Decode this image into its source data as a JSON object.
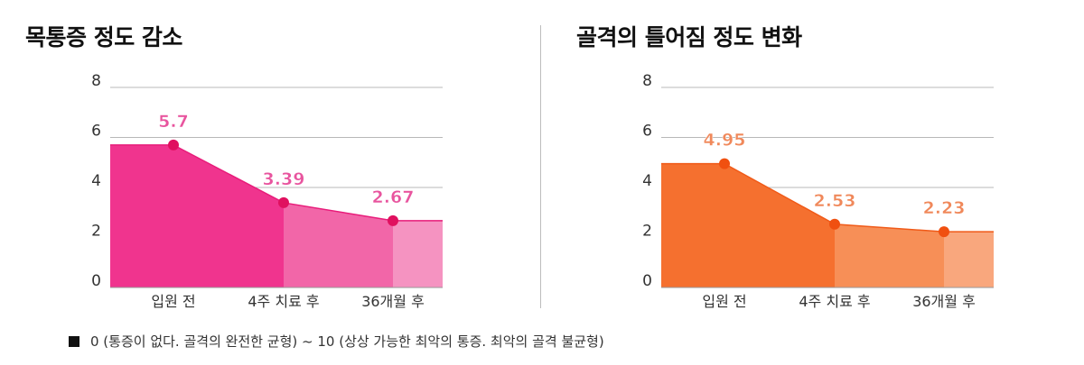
{
  "chart_data": [
    {
      "type": "area",
      "title": "목통증 정도 감소",
      "categories": [
        "입원 전",
        "4주 치료 후",
        "36개월 후"
      ],
      "values": [
        5.7,
        3.39,
        2.67
      ],
      "value_labels": [
        "5.7",
        "3.39",
        "2.67"
      ],
      "yticks": [
        "0",
        "2",
        "4",
        "6",
        "8"
      ],
      "ylim": [
        0,
        8
      ],
      "grid": true,
      "colors": {
        "fill": [
          "#f0348e",
          "#f266a8",
          "#f593c1"
        ],
        "line": "#e81c7a",
        "point": "#e0105f",
        "label": "#e8549e"
      }
    },
    {
      "type": "area",
      "title": "골격의 틀어짐 정도 변화",
      "categories": [
        "입원 전",
        "4주 치료 후",
        "36개월 후"
      ],
      "values": [
        4.95,
        2.53,
        2.23
      ],
      "value_labels": [
        "4.95",
        "2.53",
        "2.23"
      ],
      "yticks": [
        "0",
        "2",
        "4",
        "6",
        "8"
      ],
      "ylim": [
        0,
        8
      ],
      "grid": true,
      "colors": {
        "fill": [
          "#f5702f",
          "#f78f57",
          "#f9a77d"
        ],
        "line": "#f05a18",
        "point": "#f05010",
        "label": "#f0885a"
      }
    }
  ],
  "legend": {
    "text": "0 (통증이 없다. 골격의 완전한 균형) ~ 10 (상상 가능한 최악의 통증. 최악의 골격 불균형)"
  }
}
